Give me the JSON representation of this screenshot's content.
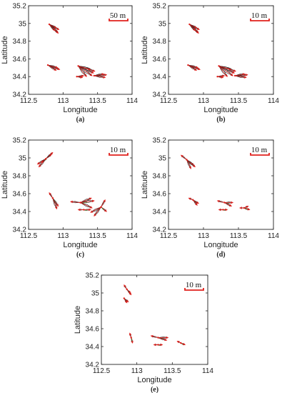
{
  "figure": {
    "colors": {
      "displacement": "#e0201c",
      "outline": "#222222",
      "secondary": "#3a7a2a"
    }
  },
  "chart_data": [
    {
      "type": "scatter",
      "panel_label": "(a)",
      "xlabel": "Longitude",
      "ylabel": "Latitude",
      "xlim": [
        112.5,
        114
      ],
      "ylim": [
        34.2,
        35.2
      ],
      "xticks": [
        "112.5",
        "113",
        "113.5",
        "114"
      ],
      "yticks": [
        "34.2",
        "34.4",
        "34.6",
        "34.8",
        "35",
        "35.2"
      ],
      "scale_label": "50 m",
      "grid": false,
      "clusters": [
        {
          "x": 112.8,
          "y": 34.99,
          "vectors": [
            [
              0.14,
              -0.06
            ],
            [
              0.12,
              -0.09
            ],
            [
              0.1,
              -0.04
            ],
            [
              0.13,
              -0.1
            ],
            [
              0.08,
              -0.07
            ]
          ]
        },
        {
          "x": 112.78,
          "y": 34.53,
          "vectors": [
            [
              0.17,
              -0.05
            ],
            [
              0.14,
              -0.03
            ],
            [
              0.12,
              -0.06
            ]
          ]
        },
        {
          "x": 113.22,
          "y": 34.52,
          "vectors": [
            [
              0.22,
              -0.08
            ],
            [
              0.2,
              -0.11
            ],
            [
              0.18,
              -0.04
            ],
            [
              0.12,
              -0.12
            ],
            [
              0.24,
              -0.06
            ]
          ]
        },
        {
          "x": 113.45,
          "y": 34.41,
          "vectors": [
            [
              0.18,
              0.01
            ],
            [
              0.16,
              -0.02
            ],
            [
              0.14,
              0.02
            ]
          ]
        },
        {
          "x": 113.2,
          "y": 34.4,
          "vectors": [
            [
              0.1,
              0.01
            ],
            [
              0.08,
              -0.01
            ]
          ]
        }
      ]
    },
    {
      "type": "scatter",
      "panel_label": "(b)",
      "xlabel": "Longitude",
      "ylabel": "Latitude",
      "xlim": [
        112.5,
        114
      ],
      "ylim": [
        34.2,
        35.2
      ],
      "xticks": [
        "112.5",
        "113",
        "113.5",
        "114"
      ],
      "yticks": [
        "34.2",
        "34.4",
        "34.6",
        "34.8",
        "35",
        "35.2"
      ],
      "scale_label": "10 m",
      "grid": false,
      "clusters": [
        {
          "x": 112.8,
          "y": 34.99,
          "vectors": [
            [
              0.14,
              -0.06
            ],
            [
              0.12,
              -0.09
            ],
            [
              0.1,
              -0.04
            ],
            [
              0.13,
              -0.1
            ],
            [
              0.08,
              -0.07
            ]
          ]
        },
        {
          "x": 112.78,
          "y": 34.53,
          "vectors": [
            [
              0.17,
              -0.05
            ],
            [
              0.14,
              -0.03
            ],
            [
              0.12,
              -0.06
            ]
          ]
        },
        {
          "x": 113.22,
          "y": 34.52,
          "vectors": [
            [
              0.22,
              -0.08
            ],
            [
              0.2,
              -0.11
            ],
            [
              0.18,
              -0.04
            ],
            [
              0.12,
              -0.12
            ],
            [
              0.24,
              -0.06
            ]
          ]
        },
        {
          "x": 113.45,
          "y": 34.41,
          "vectors": [
            [
              0.18,
              0.01
            ],
            [
              0.16,
              -0.02
            ],
            [
              0.14,
              0.02
            ]
          ]
        },
        {
          "x": 113.2,
          "y": 34.4,
          "vectors": [
            [
              0.1,
              0.01
            ],
            [
              0.08,
              -0.01
            ]
          ]
        }
      ]
    },
    {
      "type": "scatter",
      "panel_label": "(c)",
      "xlabel": "Longitude",
      "ylabel": "Latitude",
      "xlim": [
        112.5,
        114
      ],
      "ylim": [
        34.2,
        35.2
      ],
      "xticks": [
        "112.5",
        "113",
        "113.5",
        "114"
      ],
      "yticks": [
        "34.2",
        "34.4",
        "34.6",
        "34.8",
        "35",
        "35.2"
      ],
      "scale_label": "10 m",
      "grid": false,
      "clusters": [
        {
          "x": 112.75,
          "y": 34.99,
          "vectors": [
            [
              -0.12,
              -0.06
            ],
            [
              -0.1,
              -0.09
            ],
            [
              0.1,
              0.07
            ],
            [
              0.08,
              0.05
            ],
            [
              -0.06,
              -0.04
            ]
          ]
        },
        {
          "x": 112.85,
          "y": 34.55,
          "vectors": [
            [
              0.08,
              -0.09
            ],
            [
              0.06,
              -0.12
            ],
            [
              -0.05,
              0.06
            ]
          ]
        },
        {
          "x": 113.25,
          "y": 34.5,
          "vectors": [
            [
              0.2,
              0.02
            ],
            [
              0.17,
              -0.06
            ],
            [
              0.16,
              0.05
            ],
            [
              -0.14,
              0.01
            ]
          ]
        },
        {
          "x": 113.55,
          "y": 34.45,
          "vectors": [
            [
              0.08,
              -0.05
            ],
            [
              -0.15,
              -0.06
            ],
            [
              0.06,
              0.08
            ],
            [
              -0.1,
              -0.1
            ]
          ]
        },
        {
          "x": 113.3,
          "y": 34.42,
          "vectors": [
            [
              0.1,
              0.0
            ],
            [
              -0.08,
              0.0
            ]
          ]
        }
      ]
    },
    {
      "type": "scatter",
      "panel_label": "(d)",
      "xlabel": "Longitude",
      "ylabel": "Latitude",
      "xlim": [
        112.5,
        114
      ],
      "ylim": [
        34.2,
        35.2
      ],
      "xticks": [
        "112.5",
        "113",
        "113.5",
        "114"
      ],
      "yticks": [
        "34.2",
        "34.4",
        "34.6",
        "34.8",
        "35",
        "35.2"
      ],
      "scale_label": "10 m",
      "grid": false,
      "clusters": [
        {
          "x": 112.76,
          "y": 34.98,
          "vectors": [
            [
              0.1,
              -0.06
            ],
            [
              0.12,
              -0.08
            ],
            [
              -0.08,
              0.05
            ],
            [
              0.06,
              -0.1
            ]
          ]
        },
        {
          "x": 112.85,
          "y": 34.53,
          "vectors": [
            [
              0.08,
              -0.04
            ],
            [
              0.06,
              -0.06
            ],
            [
              -0.06,
              0.02
            ]
          ]
        },
        {
          "x": 113.3,
          "y": 34.5,
          "vectors": [
            [
              0.12,
              0.0
            ],
            [
              0.1,
              -0.04
            ],
            [
              -0.1,
              0.02
            ]
          ]
        },
        {
          "x": 113.28,
          "y": 34.42,
          "vectors": [
            [
              0.06,
              0.0
            ],
            [
              -0.06,
              0.0
            ]
          ]
        },
        {
          "x": 113.58,
          "y": 34.44,
          "vectors": [
            [
              0.08,
              -0.02
            ],
            [
              0.06,
              0.02
            ],
            [
              -0.06,
              0.0
            ]
          ]
        }
      ]
    },
    {
      "type": "scatter",
      "panel_label": "(e)",
      "xlabel": "Longitude",
      "ylabel": "Latitude",
      "xlim": [
        112.5,
        114
      ],
      "ylim": [
        34.2,
        35.2
      ],
      "xticks": [
        "112.5",
        "113",
        "113.5",
        "114"
      ],
      "yticks": [
        "34.2",
        "34.4",
        "34.6",
        "34.8",
        "35",
        "35.2"
      ],
      "scale_label": "10 m",
      "grid": false,
      "clusters": [
        {
          "x": 112.86,
          "y": 35.04,
          "vectors": [
            [
              0.06,
              -0.06
            ],
            [
              0.05,
              -0.04
            ],
            [
              -0.04,
              0.05
            ]
          ]
        },
        {
          "x": 112.82,
          "y": 34.94,
          "vectors": [
            [
              0.06,
              -0.04
            ],
            [
              0.04,
              -0.05
            ]
          ]
        },
        {
          "x": 112.92,
          "y": 34.5,
          "vectors": [
            [
              0.02,
              -0.06
            ],
            [
              -0.02,
              0.05
            ]
          ]
        },
        {
          "x": 113.3,
          "y": 34.5,
          "vectors": [
            [
              0.14,
              0.0
            ],
            [
              0.12,
              -0.03
            ],
            [
              -0.1,
              0.02
            ]
          ]
        },
        {
          "x": 113.3,
          "y": 34.42,
          "vectors": [
            [
              0.06,
              0.0
            ],
            [
              -0.06,
              0.0
            ]
          ]
        },
        {
          "x": 113.62,
          "y": 34.44,
          "vectors": [
            [
              0.06,
              -0.02
            ],
            [
              -0.05,
              0.02
            ]
          ]
        }
      ]
    }
  ]
}
